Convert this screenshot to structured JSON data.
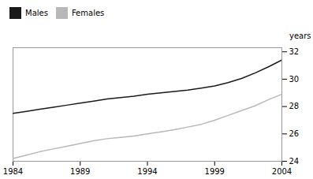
{
  "chart_data": {
    "type": "line",
    "x": [
      1984,
      1985,
      1986,
      1987,
      1988,
      1989,
      1990,
      1991,
      1992,
      1993,
      1994,
      1995,
      1996,
      1997,
      1998,
      1999,
      2000,
      2001,
      2002,
      2003,
      2004
    ],
    "series": [
      {
        "name": "Males",
        "color": "#1a1a1a",
        "values": [
          27.5,
          27.65,
          27.8,
          27.95,
          28.1,
          28.25,
          28.4,
          28.55,
          28.65,
          28.75,
          28.9,
          29.0,
          29.1,
          29.2,
          29.35,
          29.5,
          29.75,
          30.05,
          30.45,
          30.9,
          31.4
        ]
      },
      {
        "name": "Females",
        "color": "#b8b8b8",
        "values": [
          24.2,
          24.45,
          24.7,
          24.9,
          25.1,
          25.3,
          25.5,
          25.65,
          25.75,
          25.85,
          26.0,
          26.15,
          26.3,
          26.5,
          26.7,
          27.0,
          27.35,
          27.7,
          28.05,
          28.5,
          28.9
        ]
      }
    ],
    "xlim": [
      1984,
      2004
    ],
    "ylim": [
      24,
      32.3
    ],
    "xticks": [
      1984,
      1989,
      1994,
      1999,
      2004
    ],
    "yticks": [
      24,
      26,
      28,
      30,
      32
    ],
    "ylabel": "years",
    "legend": "top-left"
  }
}
